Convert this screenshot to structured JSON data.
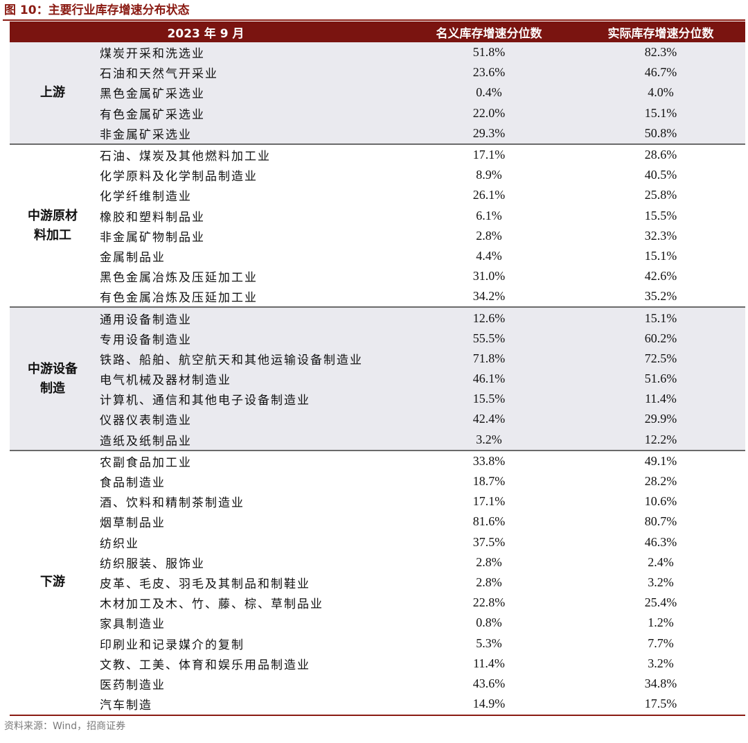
{
  "figure_title": "图 10：主要行业库存增速分布状态",
  "table": {
    "headers": [
      "2023 年 9 月",
      "名义库存增速分位数",
      "实际库存增速分位数"
    ],
    "groups": [
      {
        "label": "上游",
        "rows": [
          [
            "煤炭开采和洗选业",
            "51.8%",
            "82.3%"
          ],
          [
            "石油和天然气开采业",
            "23.6%",
            "46.7%"
          ],
          [
            "黑色金属矿采选业",
            "0.4%",
            "4.0%"
          ],
          [
            "有色金属矿采选业",
            "22.0%",
            "15.1%"
          ],
          [
            "非金属矿采选业",
            "29.3%",
            "50.8%"
          ]
        ]
      },
      {
        "label": "中游原材料加工",
        "rows": [
          [
            "石油、煤炭及其他燃料加工业",
            "17.1%",
            "28.6%"
          ],
          [
            "化学原料及化学制品制造业",
            "8.9%",
            "40.5%"
          ],
          [
            "化学纤维制造业",
            "26.1%",
            "25.8%"
          ],
          [
            "橡胶和塑料制品业",
            "6.1%",
            "15.5%"
          ],
          [
            "非金属矿物制品业",
            "2.8%",
            "32.3%"
          ],
          [
            "金属制品业",
            "4.4%",
            "15.1%"
          ],
          [
            "黑色金属冶炼及压延加工业",
            "31.0%",
            "42.6%"
          ],
          [
            "有色金属冶炼及压延加工业",
            "34.2%",
            "35.2%"
          ]
        ]
      },
      {
        "label": "中游设备制造",
        "rows": [
          [
            "通用设备制造业",
            "12.6%",
            "15.1%"
          ],
          [
            "专用设备制造业",
            "55.5%",
            "60.2%"
          ],
          [
            "铁路、船舶、航空航天和其他运输设备制造业",
            "71.8%",
            "72.5%"
          ],
          [
            "电气机械及器材制造业",
            "46.1%",
            "51.6%"
          ],
          [
            "计算机、通信和其他电子设备制造业",
            "15.5%",
            "11.4%"
          ],
          [
            "仪器仪表制造业",
            "42.4%",
            "29.9%"
          ],
          [
            "造纸及纸制品业",
            "3.2%",
            "12.2%"
          ]
        ]
      },
      {
        "label": "下游",
        "rows": [
          [
            "农副食品加工业",
            "33.8%",
            "49.1%"
          ],
          [
            "食品制造业",
            "18.7%",
            "28.2%"
          ],
          [
            "酒、饮料和精制茶制造业",
            "17.1%",
            "10.6%"
          ],
          [
            "烟草制品业",
            "81.6%",
            "80.7%"
          ],
          [
            "纺织业",
            "37.5%",
            "46.3%"
          ],
          [
            "纺织服装、服饰业",
            "2.8%",
            "2.4%"
          ],
          [
            "皮革、毛皮、羽毛及其制品和制鞋业",
            "2.8%",
            "3.2%"
          ],
          [
            "木材加工及木、竹、藤、棕、草制品业",
            "22.8%",
            "25.4%"
          ],
          [
            "家具制造业",
            "0.8%",
            "1.2%"
          ],
          [
            "印刷业和记录媒介的复制",
            "5.3%",
            "7.7%"
          ],
          [
            "文教、工美、体育和娱乐用品制造业",
            "11.4%",
            "3.2%"
          ],
          [
            "医药制造业",
            "43.6%",
            "34.8%"
          ],
          [
            "汽车制造",
            "14.9%",
            "17.5%"
          ]
        ]
      }
    ]
  },
  "source": "资料来源：Wind，招商证券",
  "colors": {
    "accent": "#8a1a12",
    "header_bg": "#7a1410",
    "shade": "#eaeaef"
  }
}
